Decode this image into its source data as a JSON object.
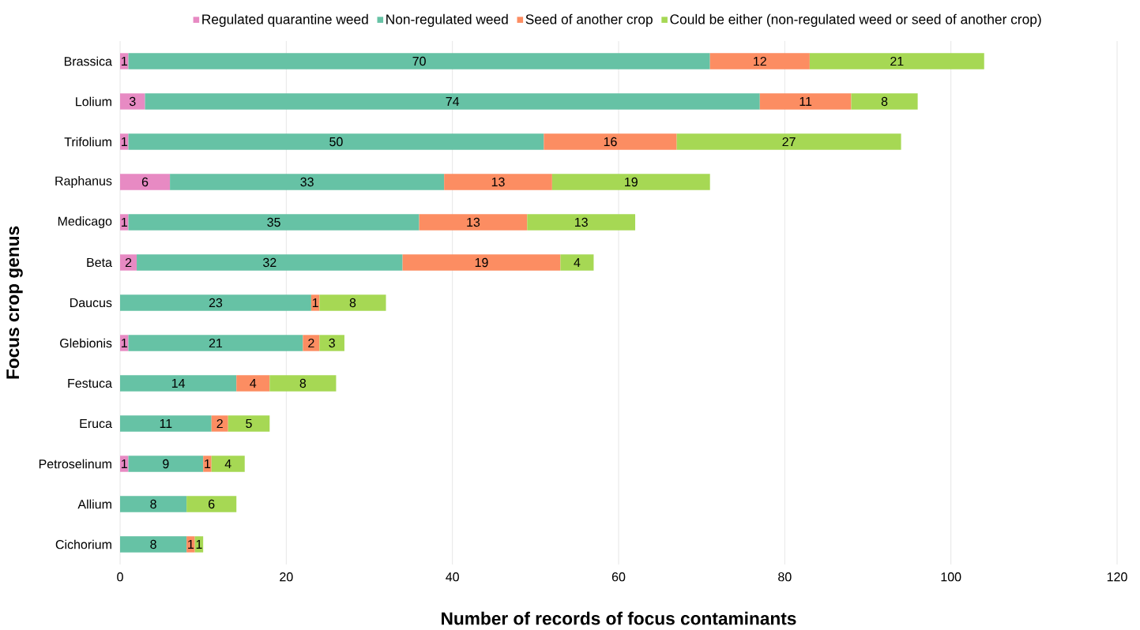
{
  "chart_data": {
    "type": "bar",
    "orientation": "horizontal",
    "stacked": true,
    "xlabel": "Number of records of focus contaminants",
    "ylabel": "Focus crop genus",
    "categories": [
      "Brassica",
      "Lolium",
      "Trifolium",
      "Raphanus",
      "Medicago",
      "Beta",
      "Daucus",
      "Glebionis",
      "Festuca",
      "Eruca",
      "Petroselinum",
      "Allium",
      "Cichorium"
    ],
    "series": [
      {
        "name": "Regulated quarantine weed",
        "color": "#e78ac3",
        "values": [
          1,
          3,
          1,
          6,
          1,
          2,
          null,
          1,
          null,
          null,
          1,
          null,
          null
        ]
      },
      {
        "name": "Non-regulated weed",
        "color": "#66c2a5",
        "values": [
          70,
          74,
          50,
          33,
          35,
          32,
          23,
          21,
          14,
          11,
          9,
          8,
          8
        ]
      },
      {
        "name": "Seed of another crop",
        "color": "#fc8d62",
        "values": [
          12,
          11,
          16,
          13,
          13,
          19,
          1,
          2,
          4,
          2,
          1,
          null,
          1
        ]
      },
      {
        "name": "Could be either (non-regulated weed or seed of another crop)",
        "color": "#a6d854",
        "values": [
          21,
          8,
          27,
          19,
          13,
          4,
          8,
          3,
          8,
          5,
          4,
          6,
          1
        ]
      }
    ],
    "xlim": [
      0,
      120
    ],
    "xticks": [
      0,
      20,
      40,
      60,
      80,
      100,
      120
    ],
    "grid": "x",
    "legend": "top",
    "data_labels": true
  }
}
